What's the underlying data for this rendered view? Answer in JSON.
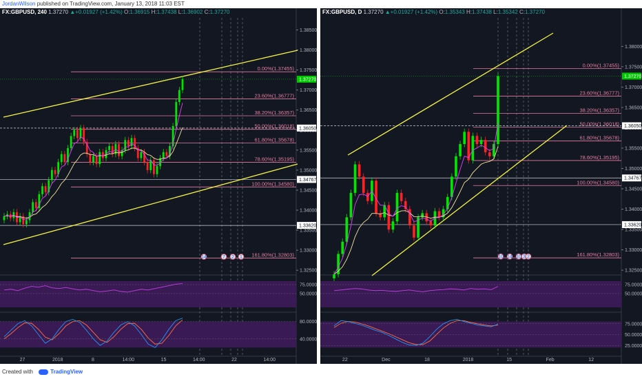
{
  "header": {
    "author": "JordanWilson",
    "published_text": "published on TradingView.com, January 13, 2018 11:03 EST"
  },
  "footer": {
    "created_with": "Created with",
    "brand": "TradingView"
  },
  "colors": {
    "up_candle": "#00e600",
    "down_candle": "#ff2222",
    "channel": "#f5f542",
    "fib": "#e57fa3",
    "ma_fast": "#e040fb",
    "ma_slow": "#f5e6a0",
    "stoch_k": "#2196f3",
    "stoch_d": "#ff7043",
    "rsi_line": "#c040e0",
    "osc_fill": "#3a1a55"
  },
  "chart_data": [
    {
      "type": "candlestick",
      "symbol": "FX:GBPUSD",
      "interval": "240",
      "ohlc_header": {
        "last": "1.37270",
        "change": "+0.01927 (+1.42%)",
        "open": "1.36915",
        "high": "1.37438",
        "low": "1.36902",
        "close": "1.37270",
        "open_label": "O:",
        "high_label": "H:",
        "low_label": "L:",
        "close_label": "C:"
      },
      "ylim": [
        1.324,
        1.388
      ],
      "y_ticks": [
        "1.38500",
        "1.38000",
        "1.37500",
        "1.37000",
        "1.36500",
        "1.36000",
        "1.35500",
        "1.35000",
        "1.34500",
        "1.34000",
        "1.33500",
        "1.33000",
        "1.32500"
      ],
      "y_tick_values": [
        1.385,
        1.38,
        1.375,
        1.37,
        1.365,
        1.36,
        1.355,
        1.35,
        1.345,
        1.34,
        1.335,
        1.33,
        1.325
      ],
      "price_labels": [
        {
          "text": "1.37270",
          "value": 1.3727,
          "highlight": true
        },
        {
          "text": "1.36050",
          "value": 1.3605,
          "highlight": false
        },
        {
          "text": "1.34767",
          "value": 1.34767,
          "highlight": false
        },
        {
          "text": "1.33620",
          "value": 1.3362,
          "highlight": false
        }
      ],
      "x_ticks": [
        "27",
        "2018",
        "8",
        "14:00",
        "15",
        "14:00",
        "22",
        "14:00"
      ],
      "fib_levels": [
        {
          "label": "0.00%(1.37455)",
          "value": 1.37455
        },
        {
          "label": "23.60%(1.36777)",
          "value": 1.36777
        },
        {
          "label": "38.20%(1.36357)",
          "value": 1.36357
        },
        {
          "label": "50.00%(1.36018)",
          "value": 1.36018
        },
        {
          "label": "61.80%(1.35678)",
          "value": 1.35678
        },
        {
          "label": "78.60%(1.35195)",
          "value": 1.35195
        },
        {
          "label": "100.00%(1.34580)",
          "value": 1.3458
        },
        {
          "label": "161.80%(1.32803)",
          "value": 1.32803
        }
      ],
      "closes": [
        1.3385,
        1.339,
        1.338,
        1.3395,
        1.337,
        1.3385,
        1.3365,
        1.3375,
        1.3395,
        1.342,
        1.3405,
        1.344,
        1.346,
        1.3445,
        1.3475,
        1.35,
        1.349,
        1.352,
        1.354,
        1.352,
        1.3555,
        1.3585,
        1.36,
        1.358,
        1.3605,
        1.357,
        1.354,
        1.352,
        1.3535,
        1.3515,
        1.3545,
        1.353,
        1.355,
        1.356,
        1.354,
        1.3565,
        1.3535,
        1.355,
        1.3575,
        1.356,
        1.358,
        1.3555,
        1.353,
        1.3545,
        1.352,
        1.35,
        1.3525,
        1.349,
        1.351,
        1.353,
        1.3545,
        1.3535,
        1.356,
        1.361,
        1.367,
        1.37,
        1.3727
      ],
      "events": [
        "14",
        "7",
        "2",
        "1"
      ],
      "rsi": {
        "ticks": [
          "75.0000",
          "50.0000"
        ],
        "values": [
          60,
          62,
          58,
          65,
          70,
          68,
          72,
          66,
          64,
          67,
          63,
          60,
          62,
          58,
          55,
          57,
          60,
          56,
          54,
          58,
          62,
          60,
          64,
          68,
          72,
          76,
          78
        ]
      },
      "stoch": {
        "ticks": [
          "80.0000",
          "40.0000"
        ],
        "k": [
          45,
          60,
          75,
          82,
          70,
          50,
          30,
          40,
          62,
          80,
          85,
          78,
          60,
          40,
          25,
          35,
          55,
          72,
          80,
          70,
          50,
          28,
          20,
          38,
          62,
          82,
          88
        ],
        "d": [
          40,
          52,
          66,
          77,
          76,
          62,
          44,
          38,
          52,
          70,
          80,
          82,
          72,
          55,
          38,
          32,
          45,
          62,
          75,
          76,
          62,
          42,
          28,
          30,
          48,
          70,
          84
        ]
      }
    },
    {
      "type": "candlestick",
      "symbol": "FX:GBPUSD",
      "interval": "D",
      "ohlc_header": {
        "last": "1.37270",
        "change": "+0.01927 (+1.42%)",
        "open": "1.35343",
        "high": "1.37438",
        "low": "1.35342",
        "close": "1.37270",
        "open_label": "O:",
        "high_label": "H:",
        "low_label": "L:",
        "close_label": "C:"
      },
      "ylim": [
        1.324,
        1.387
      ],
      "y_ticks": [
        "1.38000",
        "1.37500",
        "1.37000",
        "1.36500",
        "1.36000",
        "1.35500",
        "1.35000",
        "1.34500",
        "1.34000",
        "1.33500",
        "1.33000",
        "1.32500"
      ],
      "y_tick_values": [
        1.38,
        1.375,
        1.37,
        1.365,
        1.36,
        1.355,
        1.35,
        1.345,
        1.34,
        1.335,
        1.33,
        1.325
      ],
      "price_labels": [
        {
          "text": "1.37270",
          "value": 1.3727,
          "highlight": true
        },
        {
          "text": "1.36050",
          "value": 1.3605,
          "highlight": false
        },
        {
          "text": "1.34767",
          "value": 1.34767,
          "highlight": false
        },
        {
          "text": "1.33620",
          "value": 1.3362,
          "highlight": false
        }
      ],
      "x_ticks": [
        "22",
        "Dec",
        "18",
        "2018",
        "15",
        "Feb",
        "12"
      ],
      "fib_levels": [
        {
          "label": "0.00%(1.37455)",
          "value": 1.37455
        },
        {
          "label": "23.60%(1.36777)",
          "value": 1.36777
        },
        {
          "label": "38.20%(1.36357)",
          "value": 1.36357
        },
        {
          "label": "50.00%(1.36018)",
          "value": 1.36018
        },
        {
          "label": "61.80%(1.35678)",
          "value": 1.35678
        },
        {
          "label": "78.60%(1.35195)",
          "value": 1.35195
        },
        {
          "label": "100.00%(1.34580)",
          "value": 1.3458
        },
        {
          "label": "161.80%(1.32803)",
          "value": 1.32803
        }
      ],
      "closes": [
        1.324,
        1.329,
        1.332,
        1.338,
        1.344,
        1.351,
        1.348,
        1.344,
        1.342,
        1.347,
        1.339,
        1.338,
        1.341,
        1.335,
        1.337,
        1.344,
        1.342,
        1.34,
        1.336,
        1.333,
        1.338,
        1.339,
        1.337,
        1.336,
        1.3395,
        1.338,
        1.34,
        1.343,
        1.348,
        1.353,
        1.356,
        1.359,
        1.352,
        1.358,
        1.356,
        1.357,
        1.354,
        1.353,
        1.356,
        1.3727
      ],
      "events": [
        "10",
        "14",
        "10",
        "3",
        "2"
      ],
      "rsi": {
        "ticks": [
          "75.0000",
          "50.0000"
        ],
        "values": [
          58,
          60,
          62,
          64,
          63,
          60,
          58,
          59,
          57,
          56,
          58,
          60,
          57,
          55,
          58,
          60,
          61,
          63,
          62,
          60,
          64,
          62,
          63,
          61,
          70
        ]
      },
      "stoch": {
        "ticks": [
          "75.0000",
          "50.0000",
          "25.0000"
        ],
        "k": [
          70,
          82,
          80,
          76,
          72,
          66,
          60,
          55,
          48,
          40,
          32,
          26,
          25,
          30,
          45,
          62,
          75,
          82,
          85,
          80,
          76,
          72,
          70,
          68,
          74
        ],
        "d": [
          66,
          76,
          80,
          79,
          75,
          70,
          64,
          58,
          52,
          45,
          38,
          31,
          27,
          27,
          35,
          50,
          65,
          76,
          82,
          82,
          78,
          75,
          72,
          70,
          72
        ]
      }
    }
  ]
}
